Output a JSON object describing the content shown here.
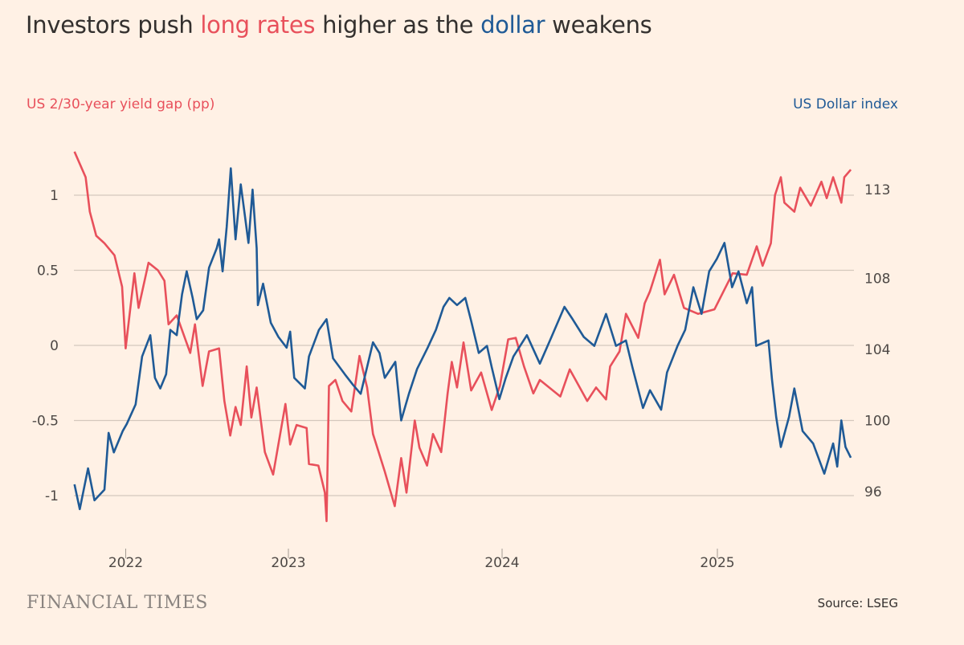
{
  "title": {
    "part1": "Investors push ",
    "highlight1": "long rates",
    "part2": " higher as the ",
    "highlight2": "dollar",
    "part3": " weakens"
  },
  "source": "Source: LSEG",
  "logo_text": "FINANCIAL TIMES",
  "colors": {
    "background": "#fff1e5",
    "yield_gap": "#e8505b",
    "dollar_index": "#1f5a96",
    "grid": "#d4c8bd",
    "text": "#33302e"
  },
  "chart_data": {
    "type": "line",
    "title": "Investors push long rates higher as the dollar weakens",
    "left_axis_label": "US 2/30-year yield gap (pp)",
    "right_axis_label": "US Dollar index",
    "xlim": [
      "2022-01-01",
      "2025-08-20"
    ],
    "x_ticks": [
      "2022",
      "2023",
      "2024",
      "2025"
    ],
    "left_ylim": [
      -1.2,
      1.35
    ],
    "left_ticks": [
      1,
      0.5,
      0,
      -0.5,
      -1
    ],
    "left_tick_labels": [
      "1",
      "0.5",
      "0",
      "-0.5",
      "-1"
    ],
    "right_ylim": [
      94.5,
      115
    ],
    "right_ticks": [
      113,
      108,
      104,
      100,
      96
    ],
    "right_tick_labels": [
      "113",
      "108",
      "104",
      "100",
      "96"
    ],
    "grid": true,
    "series": [
      {
        "axis": "left",
        "color": "#e8505b",
        "points": [
          [
            "2022-01-02",
            1.29
          ],
          [
            "2022-01-21",
            1.12
          ],
          [
            "2022-01-28",
            0.89
          ],
          [
            "2022-02-08",
            0.73
          ],
          [
            "2022-02-22",
            0.68
          ],
          [
            "2022-03-11",
            0.6
          ],
          [
            "2022-03-24",
            0.39
          ],
          [
            "2022-03-30",
            -0.02
          ],
          [
            "2022-04-14",
            0.48
          ],
          [
            "2022-04-21",
            0.25
          ],
          [
            "2022-05-08",
            0.55
          ],
          [
            "2022-05-24",
            0.5
          ],
          [
            "2022-06-04",
            0.43
          ],
          [
            "2022-06-11",
            0.14
          ],
          [
            "2022-06-25",
            0.2
          ],
          [
            "2022-07-18",
            -0.05
          ],
          [
            "2022-07-26",
            0.14
          ],
          [
            "2022-08-08",
            -0.27
          ],
          [
            "2022-08-19",
            -0.04
          ],
          [
            "2022-09-05",
            -0.02
          ],
          [
            "2022-09-14",
            -0.37
          ],
          [
            "2022-09-24",
            -0.6
          ],
          [
            "2022-10-03",
            -0.41
          ],
          [
            "2022-10-12",
            -0.53
          ],
          [
            "2022-10-22",
            -0.14
          ],
          [
            "2022-10-30",
            -0.48
          ],
          [
            "2022-11-08",
            -0.28
          ],
          [
            "2022-11-22",
            -0.71
          ],
          [
            "2022-12-06",
            -0.86
          ],
          [
            "2022-12-27",
            -0.39
          ],
          [
            "2023-01-04",
            -0.66
          ],
          [
            "2023-01-15",
            -0.53
          ],
          [
            "2023-02-01",
            -0.55
          ],
          [
            "2023-02-05",
            -0.79
          ],
          [
            "2023-02-21",
            -0.8
          ],
          [
            "2023-03-04",
            -0.98
          ],
          [
            "2023-03-07",
            -1.17
          ],
          [
            "2023-03-11",
            -0.27
          ],
          [
            "2023-03-22",
            -0.23
          ],
          [
            "2023-04-03",
            -0.37
          ],
          [
            "2023-04-18",
            -0.44
          ],
          [
            "2023-05-02",
            -0.07
          ],
          [
            "2023-05-15",
            -0.28
          ],
          [
            "2023-05-25",
            -0.59
          ],
          [
            "2023-06-14",
            -0.84
          ],
          [
            "2023-07-01",
            -1.07
          ],
          [
            "2023-07-12",
            -0.75
          ],
          [
            "2023-07-21",
            -0.98
          ],
          [
            "2023-08-04",
            -0.5
          ],
          [
            "2023-08-12",
            -0.68
          ],
          [
            "2023-08-25",
            -0.8
          ],
          [
            "2023-09-04",
            -0.59
          ],
          [
            "2023-09-18",
            -0.71
          ],
          [
            "2023-09-29",
            -0.32
          ],
          [
            "2023-10-06",
            -0.11
          ],
          [
            "2023-10-15",
            -0.28
          ],
          [
            "2023-10-26",
            0.02
          ],
          [
            "2023-11-08",
            -0.3
          ],
          [
            "2023-11-25",
            -0.18
          ],
          [
            "2023-12-13",
            -0.43
          ],
          [
            "2023-12-27",
            -0.27
          ],
          [
            "2024-01-10",
            0.04
          ],
          [
            "2024-01-23",
            0.05
          ],
          [
            "2024-02-06",
            -0.14
          ],
          [
            "2024-02-22",
            -0.32
          ],
          [
            "2024-03-04",
            -0.23
          ],
          [
            "2024-04-08",
            -0.34
          ],
          [
            "2024-04-24",
            -0.16
          ],
          [
            "2024-05-04",
            -0.23
          ],
          [
            "2024-05-24",
            -0.37
          ],
          [
            "2024-06-08",
            -0.28
          ],
          [
            "2024-06-25",
            -0.36
          ],
          [
            "2024-07-02",
            -0.14
          ],
          [
            "2024-07-18",
            -0.04
          ],
          [
            "2024-07-29",
            0.21
          ],
          [
            "2024-08-19",
            0.05
          ],
          [
            "2024-08-30",
            0.28
          ],
          [
            "2024-09-08",
            0.36
          ],
          [
            "2024-09-25",
            0.57
          ],
          [
            "2024-10-03",
            0.34
          ],
          [
            "2024-10-19",
            0.47
          ],
          [
            "2024-11-05",
            0.25
          ],
          [
            "2024-11-29",
            0.21
          ],
          [
            "2024-12-27",
            0.24
          ],
          [
            "2025-01-27",
            0.48
          ],
          [
            "2025-02-20",
            0.47
          ],
          [
            "2025-03-09",
            0.66
          ],
          [
            "2025-03-19",
            0.53
          ],
          [
            "2025-04-02",
            0.68
          ],
          [
            "2025-04-09",
            1.0
          ],
          [
            "2025-04-19",
            1.12
          ],
          [
            "2025-04-25",
            0.95
          ],
          [
            "2025-05-12",
            0.89
          ],
          [
            "2025-05-22",
            1.05
          ],
          [
            "2025-06-09",
            0.93
          ],
          [
            "2025-06-27",
            1.09
          ],
          [
            "2025-07-06",
            0.98
          ],
          [
            "2025-07-17",
            1.12
          ],
          [
            "2025-07-31",
            0.95
          ],
          [
            "2025-08-05",
            1.12
          ],
          [
            "2025-08-16",
            1.17
          ]
        ]
      },
      {
        "axis": "right",
        "color": "#1f5a96",
        "points": [
          [
            "2022-01-02",
            96.4
          ],
          [
            "2022-01-11",
            95.0
          ],
          [
            "2022-01-25",
            97.3
          ],
          [
            "2022-02-05",
            95.5
          ],
          [
            "2022-02-22",
            96.1
          ],
          [
            "2022-03-01",
            99.3
          ],
          [
            "2022-03-10",
            98.2
          ],
          [
            "2022-03-25",
            99.4
          ],
          [
            "2022-04-01",
            99.8
          ],
          [
            "2022-04-16",
            100.9
          ],
          [
            "2022-04-27",
            103.6
          ],
          [
            "2022-05-11",
            104.8
          ],
          [
            "2022-05-19",
            102.4
          ],
          [
            "2022-05-28",
            101.8
          ],
          [
            "2022-06-07",
            102.6
          ],
          [
            "2022-06-14",
            105.1
          ],
          [
            "2022-06-25",
            104.8
          ],
          [
            "2022-07-04",
            107.1
          ],
          [
            "2022-07-12",
            108.4
          ],
          [
            "2022-07-22",
            106.9
          ],
          [
            "2022-07-29",
            105.7
          ],
          [
            "2022-08-09",
            106.2
          ],
          [
            "2022-08-19",
            108.6
          ],
          [
            "2022-09-01",
            109.7
          ],
          [
            "2022-09-05",
            110.2
          ],
          [
            "2022-09-11",
            108.4
          ],
          [
            "2022-09-18",
            110.9
          ],
          [
            "2022-09-25",
            114.2
          ],
          [
            "2022-10-03",
            110.2
          ],
          [
            "2022-10-12",
            113.3
          ],
          [
            "2022-10-25",
            110.0
          ],
          [
            "2022-11-01",
            113.0
          ],
          [
            "2022-11-08",
            109.7
          ],
          [
            "2022-11-10",
            106.5
          ],
          [
            "2022-11-19",
            107.7
          ],
          [
            "2022-12-02",
            105.5
          ],
          [
            "2022-12-15",
            104.7
          ],
          [
            "2022-12-29",
            104.1
          ],
          [
            "2023-01-04",
            105.0
          ],
          [
            "2023-01-11",
            102.4
          ],
          [
            "2023-01-29",
            101.8
          ],
          [
            "2023-02-05",
            103.6
          ],
          [
            "2023-02-22",
            105.1
          ],
          [
            "2023-03-07",
            105.7
          ],
          [
            "2023-03-18",
            103.5
          ],
          [
            "2023-04-07",
            102.6
          ],
          [
            "2023-04-21",
            102.0
          ],
          [
            "2023-05-04",
            101.5
          ],
          [
            "2023-05-25",
            104.4
          ],
          [
            "2023-06-05",
            103.8
          ],
          [
            "2023-06-14",
            102.4
          ],
          [
            "2023-07-02",
            103.3
          ],
          [
            "2023-07-12",
            100.0
          ],
          [
            "2023-07-25",
            101.5
          ],
          [
            "2023-08-08",
            102.9
          ],
          [
            "2023-08-26",
            104.1
          ],
          [
            "2023-09-09",
            105.1
          ],
          [
            "2023-09-22",
            106.4
          ],
          [
            "2023-10-02",
            106.9
          ],
          [
            "2023-10-15",
            106.5
          ],
          [
            "2023-10-29",
            106.9
          ],
          [
            "2023-11-08",
            105.6
          ],
          [
            "2023-11-21",
            103.8
          ],
          [
            "2023-12-05",
            104.2
          ],
          [
            "2023-12-13",
            103.0
          ],
          [
            "2023-12-26",
            101.2
          ],
          [
            "2024-01-06",
            102.4
          ],
          [
            "2024-01-19",
            103.6
          ],
          [
            "2024-02-11",
            104.8
          ],
          [
            "2024-03-04",
            103.2
          ],
          [
            "2024-03-24",
            104.7
          ],
          [
            "2024-04-15",
            106.4
          ],
          [
            "2024-04-29",
            105.7
          ],
          [
            "2024-05-18",
            104.7
          ],
          [
            "2024-06-05",
            104.2
          ],
          [
            "2024-06-25",
            106.0
          ],
          [
            "2024-07-12",
            104.2
          ],
          [
            "2024-07-29",
            104.5
          ],
          [
            "2024-08-09",
            103.0
          ],
          [
            "2024-08-27",
            100.7
          ],
          [
            "2024-09-08",
            101.7
          ],
          [
            "2024-09-27",
            100.6
          ],
          [
            "2024-10-07",
            102.7
          ],
          [
            "2024-10-25",
            104.2
          ],
          [
            "2024-11-07",
            105.1
          ],
          [
            "2024-11-21",
            107.5
          ],
          [
            "2024-12-05",
            106.0
          ],
          [
            "2024-12-18",
            108.4
          ],
          [
            "2024-12-31",
            109.1
          ],
          [
            "2025-01-13",
            110.0
          ],
          [
            "2025-01-26",
            107.5
          ],
          [
            "2025-02-06",
            108.4
          ],
          [
            "2025-02-20",
            106.6
          ],
          [
            "2025-03-01",
            107.5
          ],
          [
            "2025-03-08",
            104.2
          ],
          [
            "2025-03-29",
            104.5
          ],
          [
            "2025-04-04",
            102.3
          ],
          [
            "2025-04-11",
            100.2
          ],
          [
            "2025-04-19",
            98.5
          ],
          [
            "2025-05-03",
            100.2
          ],
          [
            "2025-05-12",
            101.8
          ],
          [
            "2025-05-26",
            99.4
          ],
          [
            "2025-06-13",
            98.7
          ],
          [
            "2025-07-02",
            97.0
          ],
          [
            "2025-07-17",
            98.7
          ],
          [
            "2025-07-24",
            97.4
          ],
          [
            "2025-07-31",
            100.0
          ],
          [
            "2025-08-07",
            98.5
          ],
          [
            "2025-08-16",
            97.9
          ]
        ]
      }
    ]
  }
}
